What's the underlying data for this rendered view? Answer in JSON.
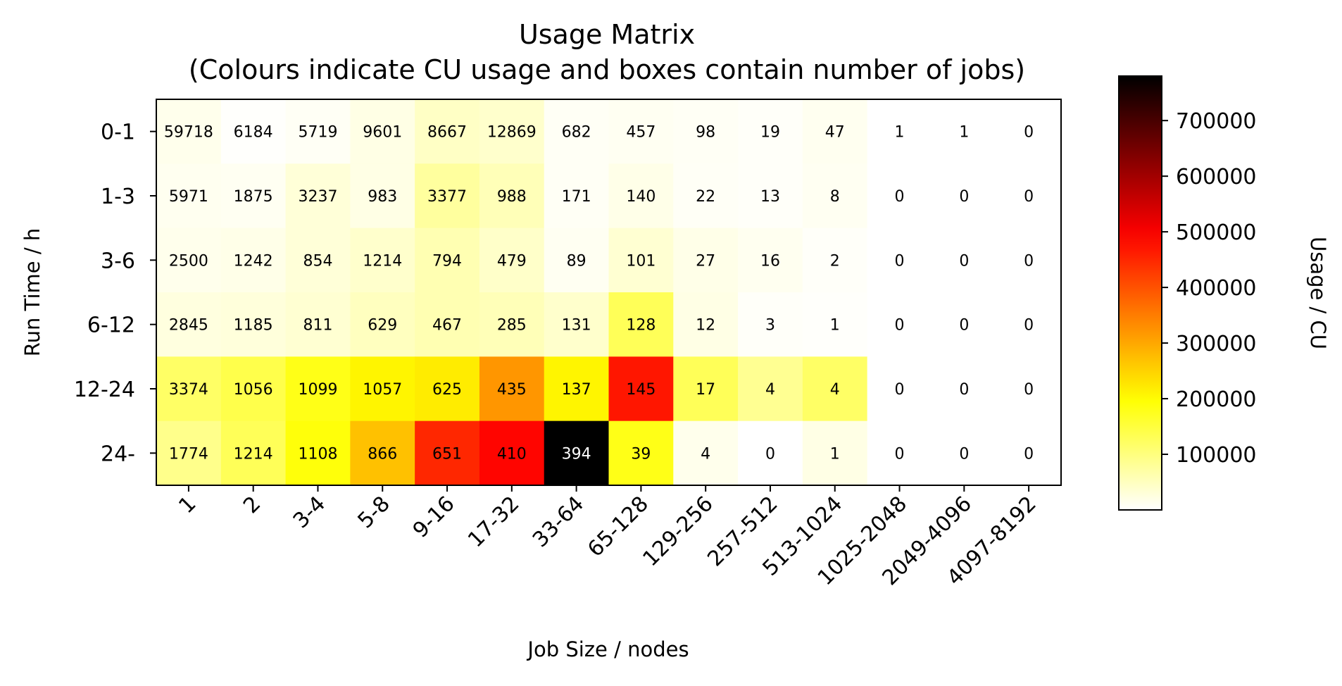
{
  "chart_data": {
    "type": "heatmap",
    "title": "Usage Matrix",
    "subtitle": "(Colours indicate CU usage and boxes contain number of jobs)",
    "xlabel": "Job Size / nodes",
    "ylabel": "Run Time / h",
    "colorbar_label": "Usage / CU",
    "colormap": "hot_r",
    "colorbar_range": [
      0,
      780000
    ],
    "colorbar_ticks": [
      "100000",
      "200000",
      "300000",
      "400000",
      "500000",
      "600000",
      "700000"
    ],
    "colorbar_tick_values": [
      100000,
      200000,
      300000,
      400000,
      500000,
      600000,
      700000
    ],
    "x_categories": [
      "1",
      "2",
      "3-4",
      "5-8",
      "9-16",
      "17-32",
      "33-64",
      "65-128",
      "129-256",
      "257-512",
      "513-1024",
      "1025-2048",
      "2049-4096",
      "4097-8192"
    ],
    "y_categories": [
      "0-1",
      "1-3",
      "3-6",
      "6-12",
      "12-24",
      "24-"
    ],
    "job_counts": [
      [
        "59718",
        "6184",
        "5719",
        "9601",
        "8667",
        "12869",
        "682",
        "457",
        "98",
        "19",
        "47",
        "1",
        "1",
        "0"
      ],
      [
        "5971",
        "1875",
        "3237",
        "983",
        "3377",
        "988",
        "171",
        "140",
        "22",
        "13",
        "8",
        "0",
        "0",
        "0"
      ],
      [
        "2500",
        "1242",
        "854",
        "1214",
        "794",
        "479",
        "89",
        "101",
        "27",
        "16",
        "2",
        "0",
        "0",
        "0"
      ],
      [
        "2845",
        "1185",
        "811",
        "629",
        "467",
        "285",
        "131",
        "128",
        "12",
        "3",
        "1",
        "0",
        "0",
        "0"
      ],
      [
        "3374",
        "1056",
        "1099",
        "1057",
        "625",
        "435",
        "137",
        "145",
        "17",
        "4",
        "4",
        "0",
        "0",
        "0"
      ],
      [
        "1774",
        "1214",
        "1108",
        "866",
        "651",
        "410",
        "394",
        "39",
        "4",
        "0",
        "1",
        "0",
        "0",
        "0"
      ]
    ],
    "usage": [
      [
        15000,
        2000,
        8000,
        20000,
        45000,
        40000,
        8000,
        10000,
        8000,
        5000,
        12000,
        0,
        0,
        0
      ],
      [
        12000,
        10000,
        30000,
        20000,
        75000,
        55000,
        8000,
        18000,
        7000,
        5000,
        10000,
        0,
        0,
        0
      ],
      [
        15000,
        18000,
        30000,
        40000,
        60000,
        42000,
        10000,
        35000,
        18000,
        12000,
        5000,
        0,
        0,
        0
      ],
      [
        25000,
        28000,
        35000,
        50000,
        60000,
        55000,
        40000,
        130000,
        20000,
        5000,
        3000,
        0,
        0,
        0
      ],
      [
        120000,
        140000,
        180000,
        210000,
        220000,
        320000,
        210000,
        470000,
        130000,
        85000,
        120000,
        0,
        0,
        0
      ],
      [
        90000,
        130000,
        190000,
        270000,
        450000,
        490000,
        780000,
        180000,
        15000,
        0,
        20000,
        0,
        0,
        0
      ]
    ]
  }
}
